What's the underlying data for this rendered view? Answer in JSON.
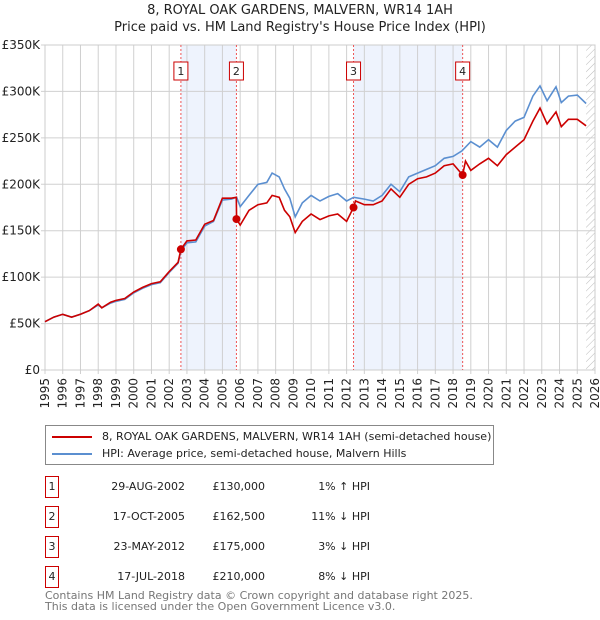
{
  "title": "8, ROYAL OAK GARDENS, MALVERN, WR14 1AH",
  "subtitle": "Price paid vs. HM Land Registry's House Price Index (HPI)",
  "legend": {
    "red": "8, ROYAL OAK GARDENS, MALVERN, WR14 1AH (semi-detached house)",
    "blue": "HPI: Average price, semi-detached house, Malvern Hills"
  },
  "colors": {
    "red": "#cc0000",
    "blue": "#5b8fd0",
    "band": "#eef3fd"
  },
  "sales": [
    {
      "n": "1",
      "date": "29-AUG-2002",
      "price": "£130,000",
      "hpi": "1% ↑ HPI"
    },
    {
      "n": "2",
      "date": "17-OCT-2005",
      "price": "£162,500",
      "hpi": "11% ↓ HPI"
    },
    {
      "n": "3",
      "date": "23-MAY-2012",
      "price": "£175,000",
      "hpi": "3% ↓ HPI"
    },
    {
      "n": "4",
      "date": "17-JUL-2018",
      "price": "£210,000",
      "hpi": "8% ↓ HPI"
    }
  ],
  "footer": [
    "Contains HM Land Registry data © Crown copyright and database right 2025.",
    "This data is licensed under the Open Government Licence v3.0."
  ],
  "chart_data": {
    "type": "line",
    "xlim": [
      1995,
      2026
    ],
    "ylim": [
      0,
      350000
    ],
    "yticks": [
      {
        "v": 0,
        "l": "£0"
      },
      {
        "v": 50000,
        "l": "£50K"
      },
      {
        "v": 100000,
        "l": "£100K"
      },
      {
        "v": 150000,
        "l": "£150K"
      },
      {
        "v": 200000,
        "l": "£200K"
      },
      {
        "v": 250000,
        "l": "£250K"
      },
      {
        "v": 300000,
        "l": "£300K"
      },
      {
        "v": 350000,
        "l": "£350K"
      }
    ],
    "xticks": [
      "1995",
      "1996",
      "1997",
      "1998",
      "1999",
      "2000",
      "2001",
      "2002",
      "2003",
      "2004",
      "2005",
      "2006",
      "2007",
      "2008",
      "2009",
      "2010",
      "2011",
      "2012",
      "2013",
      "2014",
      "2015",
      "2016",
      "2017",
      "2018",
      "2019",
      "2020",
      "2021",
      "2022",
      "2023",
      "2024",
      "2025",
      "2026"
    ],
    "sale_points": [
      {
        "n": "1",
        "x": 2002.66,
        "y": 130000
      },
      {
        "n": "2",
        "x": 2005.79,
        "y": 162500
      },
      {
        "n": "3",
        "x": 2012.39,
        "y": 175000
      },
      {
        "n": "4",
        "x": 2018.54,
        "y": 210000
      }
    ],
    "bands": [
      [
        2002.66,
        2005.79
      ],
      [
        2012.39,
        2018.54
      ]
    ],
    "forecast_from": 2025.5,
    "series": [
      {
        "name": "HPI",
        "color": "#5b8fd0",
        "x": [
          1995,
          1995.5,
          1996,
          1996.5,
          1997,
          1997.5,
          1998,
          1998.2,
          1998.7,
          1999,
          1999.5,
          2000,
          2000.5,
          2001,
          2001.5,
          2002,
          2002.5,
          2002.66,
          2003,
          2003.5,
          2004,
          2004.5,
          2005,
          2005.5,
          2005.8,
          2006,
          2006.5,
          2007,
          2007.5,
          2007.8,
          2008.2,
          2008.5,
          2008.8,
          2009.1,
          2009.5,
          2010,
          2010.5,
          2011,
          2011.5,
          2012,
          2012.4,
          2013,
          2013.5,
          2014,
          2014.5,
          2015,
          2015.5,
          2016,
          2016.5,
          2017,
          2017.5,
          2018,
          2018.5,
          2019,
          2019.5,
          2020,
          2020.5,
          2021,
          2021.5,
          2022,
          2022.5,
          2022.9,
          2023.3,
          2023.8,
          2024.1,
          2024.5,
          2025,
          2025.5
        ],
        "y": [
          52,
          57,
          60,
          57,
          60,
          64,
          70,
          67,
          72,
          74,
          76,
          83,
          88,
          92,
          94,
          105,
          115,
          128,
          137,
          138,
          155,
          160,
          183,
          184,
          186,
          176,
          188,
          200,
          202,
          212,
          208,
          195,
          185,
          165,
          180,
          188,
          182,
          187,
          190,
          182,
          186,
          184,
          182,
          188,
          200,
          192,
          208,
          212,
          216,
          220,
          228,
          230,
          236,
          246,
          240,
          248,
          240,
          258,
          268,
          272,
          295,
          306,
          290,
          305,
          288,
          295,
          296,
          287
        ]
      },
      {
        "name": "Price paid",
        "color": "#cc0000",
        "x": [
          1995,
          1995.5,
          1996,
          1996.5,
          1997,
          1997.5,
          1998,
          1998.2,
          1998.7,
          1999,
          1999.5,
          2000,
          2000.5,
          2001,
          2001.5,
          2002,
          2002.5,
          2002.66,
          2003,
          2003.5,
          2004,
          2004.5,
          2005,
          2005.5,
          2005.78,
          2005.8,
          2006,
          2006.5,
          2007,
          2007.5,
          2007.8,
          2008.2,
          2008.5,
          2008.8,
          2009.1,
          2009.5,
          2010,
          2010.5,
          2011,
          2011.5,
          2012,
          2012.39,
          2012.5,
          2013,
          2013.5,
          2014,
          2014.5,
          2015,
          2015.5,
          2016,
          2016.5,
          2017,
          2017.5,
          2018,
          2018.54,
          2018.7,
          2019,
          2019.5,
          2020,
          2020.5,
          2021,
          2021.5,
          2022,
          2022.5,
          2022.9,
          2023.3,
          2023.8,
          2024.1,
          2024.5,
          2025,
          2025.5
        ],
        "y": [
          52,
          57,
          60,
          57,
          60,
          64,
          71,
          67,
          73,
          75,
          77,
          84,
          89,
          93,
          95,
          106,
          116,
          130,
          139,
          140,
          157,
          161,
          185,
          185,
          186,
          162.5,
          156,
          172,
          178,
          180,
          188,
          186,
          172,
          165,
          148,
          160,
          168,
          162,
          166,
          168,
          160,
          175,
          182,
          178,
          178,
          182,
          195,
          186,
          200,
          206,
          208,
          212,
          220,
          222,
          210,
          225,
          215,
          222,
          228,
          220,
          232,
          240,
          248,
          268,
          282,
          265,
          278,
          262,
          270,
          270,
          263
        ]
      }
    ]
  }
}
